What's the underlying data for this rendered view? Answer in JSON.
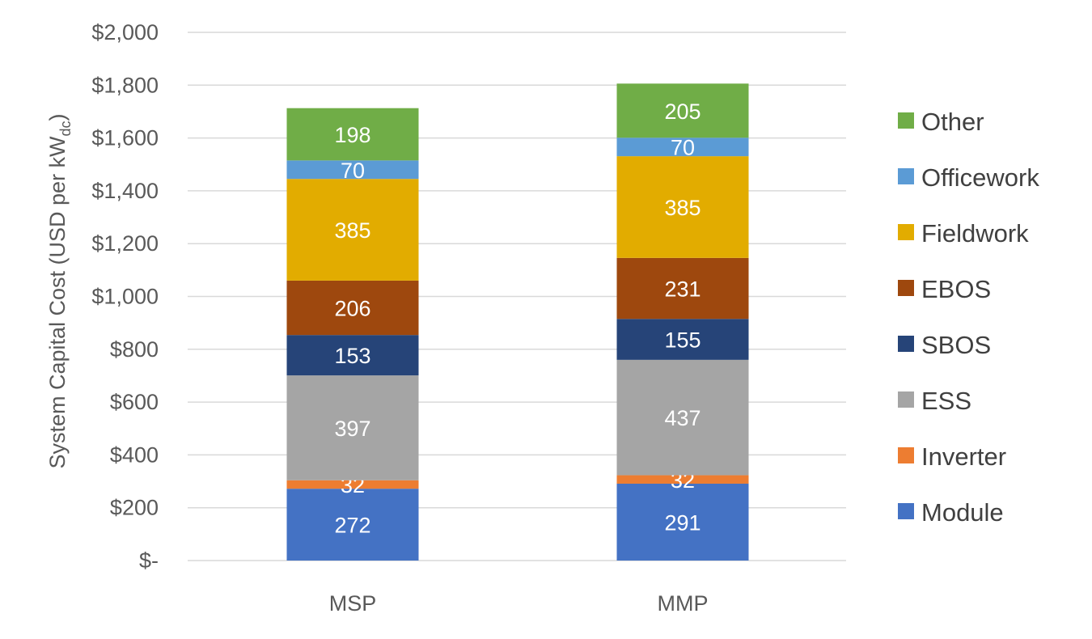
{
  "chart_data": {
    "type": "bar",
    "stacked": true,
    "title": "",
    "xlabel": "",
    "ylabel": "System Capital Cost (USD per kW",
    "ylabel_subscript": "dc",
    "ylabel_suffix": ")",
    "ylim": [
      0,
      2000
    ],
    "yticks": [
      0,
      200,
      400,
      600,
      800,
      1000,
      1200,
      1400,
      1600,
      1800,
      2000
    ],
    "ytick_labels": [
      "$-",
      "$200",
      "$400",
      "$600",
      "$800",
      "$1,000",
      "$1,200",
      "$1,400",
      "$1,600",
      "$1,800",
      "$2,000"
    ],
    "grid": true,
    "legend_position": "right",
    "categories": [
      "MSP",
      "MMP"
    ],
    "series": [
      {
        "name": "Module",
        "color": "#4472c4",
        "values": [
          272,
          291
        ]
      },
      {
        "name": "Inverter",
        "color": "#ed7d31",
        "values": [
          32,
          32
        ]
      },
      {
        "name": "ESS",
        "color": "#a5a5a5",
        "values": [
          397,
          437
        ]
      },
      {
        "name": "SBOS",
        "color": "#264478",
        "values": [
          153,
          155
        ]
      },
      {
        "name": "EBOS",
        "color": "#9e480e",
        "values": [
          206,
          231
        ]
      },
      {
        "name": "Fieldwork",
        "color": "#e2ac00",
        "values": [
          385,
          385
        ]
      },
      {
        "name": "Officework",
        "color": "#5b9bd5",
        "values": [
          70,
          70
        ]
      },
      {
        "name": "Other",
        "color": "#70ad47",
        "values": [
          198,
          205
        ]
      }
    ]
  }
}
